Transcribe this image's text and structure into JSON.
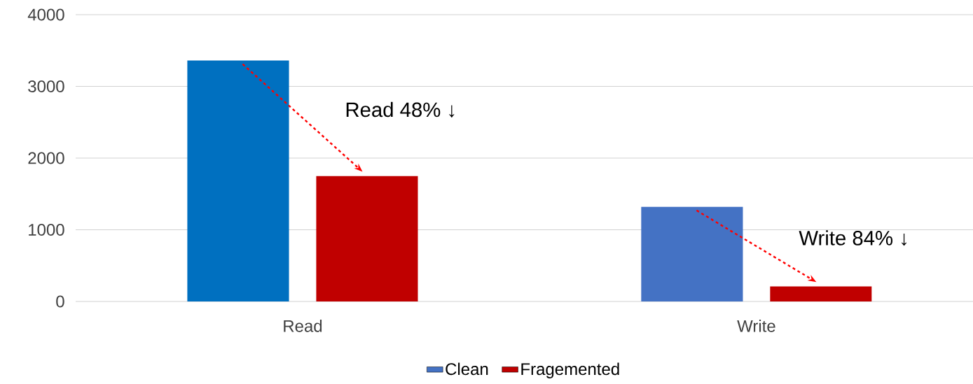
{
  "chart_data": {
    "type": "bar",
    "categories": [
      "Read",
      "Write"
    ],
    "series": [
      {
        "name": "Clean",
        "color": "#4472c4",
        "colors": [
          "#0070c0",
          "#4472c4"
        ],
        "values": [
          3360,
          1320
        ]
      },
      {
        "name": "Fragemented",
        "color": "#c00000",
        "values": [
          1750,
          210
        ]
      }
    ],
    "ylim": [
      0,
      4000
    ],
    "yticks": [
      0,
      1000,
      2000,
      3000,
      4000
    ],
    "grid": "y",
    "legend": "bottom",
    "annotations": [
      "Read 48% ↓",
      "Write 84% ↓"
    ]
  }
}
